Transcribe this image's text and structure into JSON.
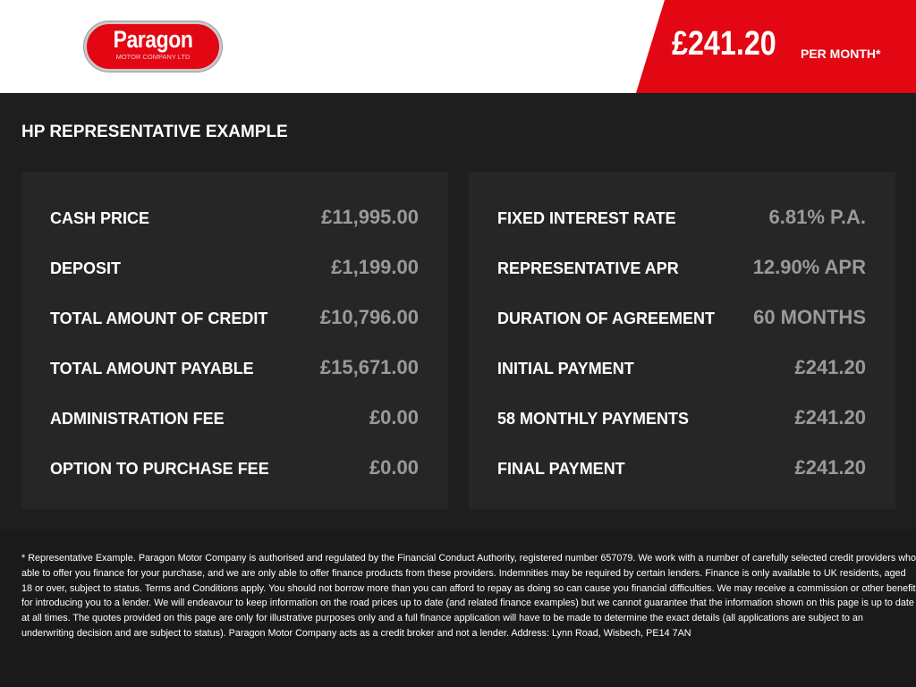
{
  "header": {
    "logo": {
      "name": "Paragon",
      "subtitle": "MOTOR COMPANY LTD"
    },
    "price": "£241.20",
    "price_suffix": "PER MONTH*",
    "brand_color": "#e30613"
  },
  "section_title": "HP REPRESENTATIVE EXAMPLE",
  "left_panel": [
    {
      "label": "CASH PRICE",
      "value": "£11,995.00"
    },
    {
      "label": "DEPOSIT",
      "value": "£1,199.00"
    },
    {
      "label": "TOTAL AMOUNT OF CREDIT",
      "value": "£10,796.00"
    },
    {
      "label": "TOTAL AMOUNT PAYABLE",
      "value": "£15,671.00"
    },
    {
      "label": "ADMINISTRATION FEE",
      "value": "£0.00"
    },
    {
      "label": "OPTION TO PURCHASE FEE",
      "value": "£0.00"
    }
  ],
  "right_panel": [
    {
      "label": "FIXED INTEREST RATE",
      "value": "6.81% P.A."
    },
    {
      "label": "REPRESENTATIVE APR",
      "value": "12.90% APR"
    },
    {
      "label": "DURATION OF AGREEMENT",
      "value": "60 MONTHS"
    },
    {
      "label": "INITIAL PAYMENT",
      "value": "£241.20"
    },
    {
      "label": "58 MONTHLY PAYMENTS",
      "value": "£241.20"
    },
    {
      "label": "FINAL PAYMENT",
      "value": "£241.20"
    }
  ],
  "disclaimer": [
    "* Representative Example. Paragon Motor Company is authorised and regulated by the Financial Conduct Authority, registered number 657079. We work with a number of carefully selected credit providers who may be",
    "able to offer you finance for your purchase, and we are only able to offer finance products from these providers. Indemnities may be required by certain lenders. Finance is only available to UK residents, aged",
    "18 or over, subject to status. Terms and Conditions apply. You should not borrow more than you can afford to repay as doing so can cause you financial difficulties. We may receive a commission or other benefits",
    "for introducing you to a lender. We will endeavour to keep information on the road prices up to date (and related finance examples) but we cannot guarantee that the information shown on this page is up to date",
    "at all times. The quotes provided on this page are only for illustrative purposes only and a full finance application will have to be made to determine the exact details (all applications are subject to an",
    "underwriting decision and are subject to status). Paragon Motor Company acts as a credit broker and not a lender. Address: Lynn Road, Wisbech, PE14 7AN"
  ]
}
